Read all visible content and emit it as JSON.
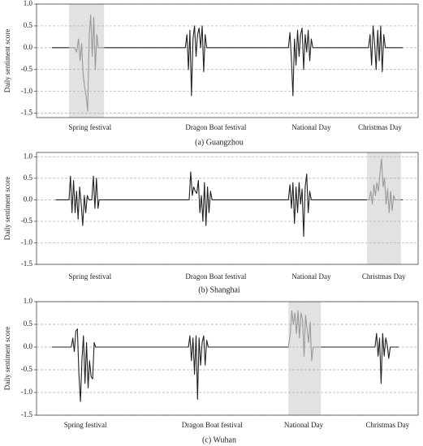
{
  "chart_data": [
    {
      "type": "line",
      "caption": "(a)   Guangzhou",
      "ylabel": "Daily sentiment score",
      "xlim": [
        0,
        100
      ],
      "ylim": [
        -1.6,
        1.0
      ],
      "yticks": [
        {
          "value": 1,
          "label": "1.0"
        },
        0.5,
        {
          "value": 0,
          "label": "0.0"
        },
        -0.5,
        {
          "value": -1,
          "label": "-1.0"
        },
        -1.5
      ],
      "xticks": [
        {
          "value": 14,
          "label": "Spring festival"
        },
        {
          "value": 47,
          "label": "Dragon Boat festival"
        },
        {
          "value": 72,
          "label": "National Day"
        },
        {
          "value": 90,
          "label": "Christmas Day"
        }
      ],
      "grid": true,
      "highlight": [
        8.5,
        17.7
      ],
      "highlight_color": "#e2e2e2",
      "series": [
        {
          "color": "#222222",
          "x": [
            4,
            8.5,
            13,
            17.7,
            39,
            39.4,
            39.8,
            40.2,
            40.6,
            41,
            41.4,
            41.8,
            42.2,
            42.6,
            43,
            43.4,
            43.8,
            44.2,
            44.6,
            45,
            66,
            66.4,
            66.8,
            67.2,
            67.6,
            68,
            68.4,
            68.8,
            69.2,
            69.6,
            70,
            70.4,
            70.8,
            71.2,
            71.6,
            72,
            72.4,
            73,
            87,
            87.4,
            87.8,
            88.2,
            88.6,
            89,
            89.4,
            89.8,
            90.2,
            90.6,
            91,
            91.4,
            96
          ],
          "values": [
            0,
            0,
            null,
            0,
            0,
            0.3,
            -0.5,
            0.4,
            -1.1,
            0.2,
            0.5,
            -0.2,
            0.3,
            0.45,
            0,
            0.5,
            -0.55,
            0.3,
            0,
            0,
            0,
            0.35,
            -0.3,
            -1.1,
            0.2,
            -0.4,
            0.4,
            -0.2,
            0.3,
            0.45,
            -0.5,
            0.3,
            -0.1,
            0.4,
            -0.3,
            0.2,
            0,
            0,
            0,
            0.3,
            -0.4,
            0.5,
            0.1,
            -0.5,
            0.4,
            -0.3,
            0.5,
            -0.55,
            0.3,
            0,
            0
          ]
        },
        {
          "color": "#999999",
          "x": [
            8.5,
            10,
            10.5,
            11,
            11.4,
            11.8,
            12.2,
            12.6,
            13,
            13.4,
            13.8,
            14.2,
            14.6,
            15,
            15.4,
            15.8,
            16.2,
            17.7
          ],
          "values": [
            0,
            0,
            -0.1,
            0.2,
            -0.3,
            0.1,
            -0.6,
            -0.9,
            -1.1,
            -1.45,
            0.3,
            0.75,
            -0.2,
            0.7,
            -0.5,
            0.3,
            0,
            0
          ]
        }
      ]
    },
    {
      "type": "line",
      "caption": "(b)   Shanghai",
      "ylabel": "Daily sentiment score",
      "xlim": [
        0,
        100
      ],
      "ylim": [
        -1.5,
        1.1
      ],
      "yticks": [
        {
          "value": 1,
          "label": "1.0"
        },
        0.5,
        {
          "value": 0,
          "label": "0.0"
        },
        -0.5,
        {
          "value": -1,
          "label": "-1.0"
        },
        -1.5
      ],
      "xticks": [
        {
          "value": 14,
          "label": "Spring festival"
        },
        {
          "value": 47,
          "label": "Dragon Boat festival"
        },
        {
          "value": 72,
          "label": "National Day"
        },
        {
          "value": 91,
          "label": "Christmas Day"
        }
      ],
      "grid": true,
      "highlight": [
        86.6,
        95.5
      ],
      "highlight_color": "#e2e2e2",
      "series": [
        {
          "color": "#222222",
          "x": [
            5,
            8.5,
            8.9,
            9.3,
            9.7,
            10.1,
            10.5,
            10.9,
            11.3,
            11.7,
            12.1,
            12.5,
            12.9,
            13.3,
            13.7,
            14.5,
            14.9,
            15.3,
            15.7,
            16.1,
            16.4,
            40,
            40.4,
            40.8,
            41.2,
            41.6,
            42,
            42.4,
            42.8,
            43.2,
            43.6,
            44,
            44.4,
            44.8,
            45.2,
            45.6,
            46,
            66,
            66.4,
            66.8,
            67.2,
            67.6,
            68,
            68.4,
            68.8,
            69.2,
            69.6,
            70,
            70.4,
            70.8,
            71.2,
            71.6,
            72,
            73.8,
            86.6,
            91,
            95.5,
            95.9
          ],
          "values": [
            0,
            0,
            0.55,
            -0.3,
            0.45,
            -0.3,
            0.2,
            -0.45,
            0.3,
            -0.1,
            -0.6,
            0.1,
            -0.3,
            0.1,
            0,
            0,
            0.55,
            -0.2,
            0.5,
            -0.2,
            0,
            0,
            0.65,
            0.1,
            0.3,
            0.2,
            0.15,
            0.45,
            -0.3,
            0.1,
            -0.5,
            0.4,
            -0.6,
            0.3,
            -0.3,
            0.2,
            0,
            0,
            0.35,
            -0.2,
            0.4,
            -0.55,
            0.3,
            -0.3,
            0.4,
            -0.1,
            0.25,
            -0.85,
            0.3,
            0.6,
            -0.3,
            0.2,
            0,
            0,
            0,
            null,
            0,
            0
          ]
        },
        {
          "color": "#999999",
          "x": [
            86.6,
            87.2,
            87.6,
            88,
            88.4,
            88.8,
            89.2,
            89.6,
            90,
            90.4,
            90.8,
            91.2,
            91.6,
            92,
            92.4,
            92.8,
            93.2,
            93.6,
            94,
            95.5
          ],
          "values": [
            0,
            0,
            0.2,
            -0.1,
            0.35,
            0.1,
            0.4,
            0.2,
            0.6,
            0.95,
            0.3,
            0.5,
            -0.1,
            0.25,
            -0.3,
            0.2,
            -0.25,
            0.1,
            0,
            0
          ]
        }
      ]
    },
    {
      "type": "line",
      "caption": "(c)   Wuhan",
      "ylabel": "Daily sentiment score",
      "xlim": [
        0,
        100
      ],
      "ylim": [
        -1.5,
        1.0
      ],
      "yticks": [
        {
          "value": 1,
          "label": "1.0"
        },
        0.5,
        {
          "value": 0,
          "label": "0.0"
        },
        -0.5,
        {
          "value": -1,
          "label": "-1.0"
        },
        -1.5
      ],
      "xticks": [
        {
          "value": 12.8,
          "label": "Spring festival"
        },
        {
          "value": 46,
          "label": "Dragon Boat festival"
        },
        {
          "value": 70,
          "label": "National Day"
        },
        {
          "value": 92,
          "label": "Christmas Day"
        }
      ],
      "grid": true,
      "highlight": [
        66,
        74.5
      ],
      "highlight_color": "#e2e2e2",
      "series": [
        {
          "color": "#222222",
          "x": [
            4,
            9.1,
            9.5,
            9.9,
            10.3,
            10.7,
            11.1,
            11.5,
            11.9,
            12.3,
            12.7,
            13.1,
            13.5,
            13.9,
            14.3,
            14.7,
            15.1,
            15.5,
            39.8,
            40.2,
            40.6,
            41,
            41.4,
            41.8,
            42.2,
            42.6,
            43,
            43.4,
            43.8,
            44.2,
            44.6,
            45,
            66,
            70,
            74.5,
            88.7,
            89.1,
            89.5,
            89.9,
            90.3,
            90.7,
            91.1,
            91.5,
            91.9,
            92.3,
            92.7,
            94.9
          ],
          "values": [
            0,
            0,
            0.2,
            -0.1,
            0.35,
            0.4,
            -0.6,
            -1.2,
            -0.3,
            0.25,
            -0.8,
            0.1,
            -0.9,
            -0.3,
            -0.65,
            -0.7,
            0.1,
            0,
            0,
            0.25,
            -0.3,
            0.2,
            -0.6,
            0.25,
            -1.15,
            0.2,
            -0.4,
            0.1,
            0.25,
            -0.4,
            0.15,
            0,
            0,
            null,
            0,
            0,
            0.3,
            -0.2,
            0.2,
            -0.8,
            0.3,
            -0.2,
            0.2,
            0.05,
            -0.25,
            0,
            0
          ]
        },
        {
          "color": "#999999",
          "x": [
            66,
            66.5,
            66.9,
            67.3,
            67.7,
            68.1,
            68.5,
            68.9,
            69.3,
            69.7,
            70.1,
            70.5,
            70.9,
            71.3,
            71.7,
            72.1,
            72.5,
            74.5
          ],
          "values": [
            0,
            0.3,
            0.8,
            0.5,
            0.75,
            0.3,
            0.8,
            0.2,
            0.75,
            0.6,
            -0.2,
            0.7,
            0.4,
            0.1,
            0.55,
            -0.3,
            0,
            0
          ]
        }
      ]
    }
  ]
}
